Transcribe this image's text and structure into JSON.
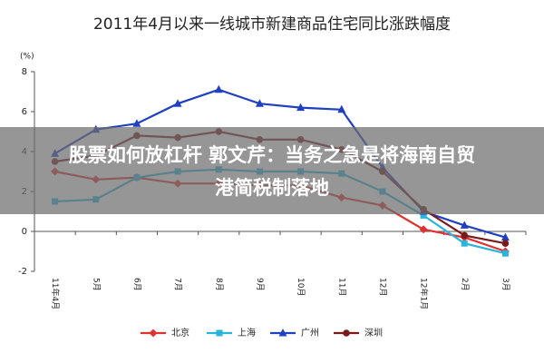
{
  "chart_data": {
    "type": "line",
    "title": "2011年4月以来一线城市新建商品住宅同比涨跌幅度",
    "y_label": "(%)",
    "categories": [
      "11年4月",
      "5月",
      "6月",
      "7月",
      "8月",
      "9月",
      "10月",
      "11月",
      "12月",
      "12年1月",
      "2月",
      "3月"
    ],
    "series": [
      {
        "name": "北京",
        "color": "#e03030",
        "marker": "diamond",
        "values": [
          3.0,
          2.6,
          2.7,
          2.4,
          2.4,
          2.3,
          2.3,
          1.7,
          1.3,
          0.1,
          -0.3,
          -1.0
        ]
      },
      {
        "name": "上海",
        "color": "#2ab4dc",
        "marker": "square",
        "values": [
          1.5,
          1.6,
          2.7,
          3.0,
          3.1,
          3.0,
          3.0,
          2.9,
          2.0,
          0.8,
          -0.6,
          -1.1
        ]
      },
      {
        "name": "广州",
        "color": "#2040c0",
        "marker": "triangle",
        "values": [
          3.9,
          5.1,
          5.4,
          6.4,
          7.1,
          6.4,
          6.2,
          6.1,
          3.2,
          1.0,
          0.3,
          -0.3
        ]
      },
      {
        "name": "深圳",
        "color": "#7a1a1a",
        "marker": "circle",
        "values": [
          3.5,
          3.8,
          4.8,
          4.7,
          5.0,
          4.6,
          4.6,
          4.1,
          3.0,
          1.1,
          -0.2,
          -0.6
        ]
      }
    ],
    "ylim": [
      -2,
      8
    ],
    "yticks": [
      -2,
      0,
      2,
      4,
      6,
      8
    ],
    "legend": "bottom"
  },
  "overlay": {
    "headline": [
      "股票如何放杠杆 郭文芹：当务之急是将海南自贸",
      "港简税制落地"
    ]
  }
}
